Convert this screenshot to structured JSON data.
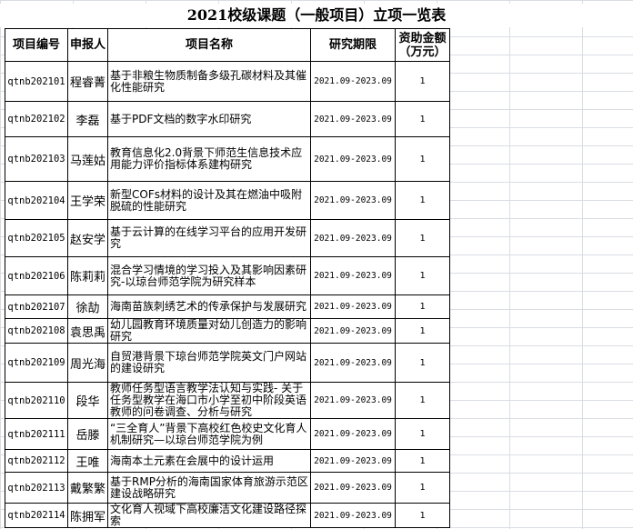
{
  "title": "2021校级课题（一般项目）立项一览表",
  "headers": [
    "项目编号",
    "申报人",
    "项目名称",
    "研究期限",
    "资助金额（万元）"
  ],
  "rows": [
    {
      "id": "qtnb202101",
      "name": "程睿菁",
      "project": "基于非粮生物质制备多级孔碳材料及其催化性能研究",
      "period": "2021.09-2023.09",
      "amount": "1"
    },
    {
      "id": "qtnb202102",
      "name": "李磊",
      "project": "基于PDF文档的数字水印研究",
      "period": "2021.09-2023.09",
      "amount": "1"
    },
    {
      "id": "qtnb202103",
      "name": "马莲姑",
      "project": "教育信息化2.0背景下师范生信息技术应用能力评价指标体系建构研究",
      "period": "2021.09-2023.09",
      "amount": "1"
    },
    {
      "id": "qtnb202104",
      "name": "王学荣",
      "project": "新型COFs材料的设计及其在燃油中吸附脱硫的性能研究",
      "period": "2021.09-2023.09",
      "amount": "1"
    },
    {
      "id": "qtnb202105",
      "name": "赵安学",
      "project": "基于云计算的在线学习平台的应用开发研究",
      "period": "2021.09-2023.09",
      "amount": "1"
    },
    {
      "id": "qtnb202106",
      "name": "陈莉莉",
      "project": "混合学习情境的学习投入及其影响因素研究-以琼台师范学院为研究样本",
      "period": "2021.09-2023.09",
      "amount": "1"
    },
    {
      "id": "qtnb202107",
      "name": "徐劼",
      "project": "海南苗族刺绣艺术的传承保护与发展研究",
      "period": "2021.09-2023.09",
      "amount": "1"
    },
    {
      "id": "qtnb202108",
      "name": "袁思禹",
      "project": "幼儿园教育环境质量对幼儿创造力的影响研究",
      "period": "2021.09-2023.09",
      "amount": "1"
    },
    {
      "id": "qtnb202109",
      "name": "周光海",
      "project": "自贸港背景下琼台师范学院英文门户网站的建设研究",
      "period": "2021.09-2023.09",
      "amount": "1"
    },
    {
      "id": "qtnb202110",
      "name": "段华",
      "project": "教师任务型语言教学法认知与实践- 关于任务型教学在海口市小学至初中阶段英语教师的问卷调查、分析与研究",
      "period": "2021.09-2023.09",
      "amount": "1"
    },
    {
      "id": "qtnb202111",
      "name": "岳滕",
      "project": "“三全育人”背景下高校红色校史文化育人机制研究—以琼台师范学院为例",
      "period": "2021.09-2023.09",
      "amount": "1"
    },
    {
      "id": "qtnb202112",
      "name": "王唯",
      "project": "海南本土元素在会展中的设计运用",
      "period": "2021.09-2023.09",
      "amount": "1"
    },
    {
      "id": "qtnb202113",
      "name": "戴繁繁",
      "project": "基于RMP分析的海南国家体育旅游示范区建设战略研究",
      "period": "2021.09-2023.09",
      "amount": "1"
    },
    {
      "id": "qtnb202114",
      "name": "陈拥军",
      "project": "文化育人视域下高校廉洁文化建设路径探索",
      "period": "2021.09-2023.09",
      "amount": "1"
    }
  ]
}
